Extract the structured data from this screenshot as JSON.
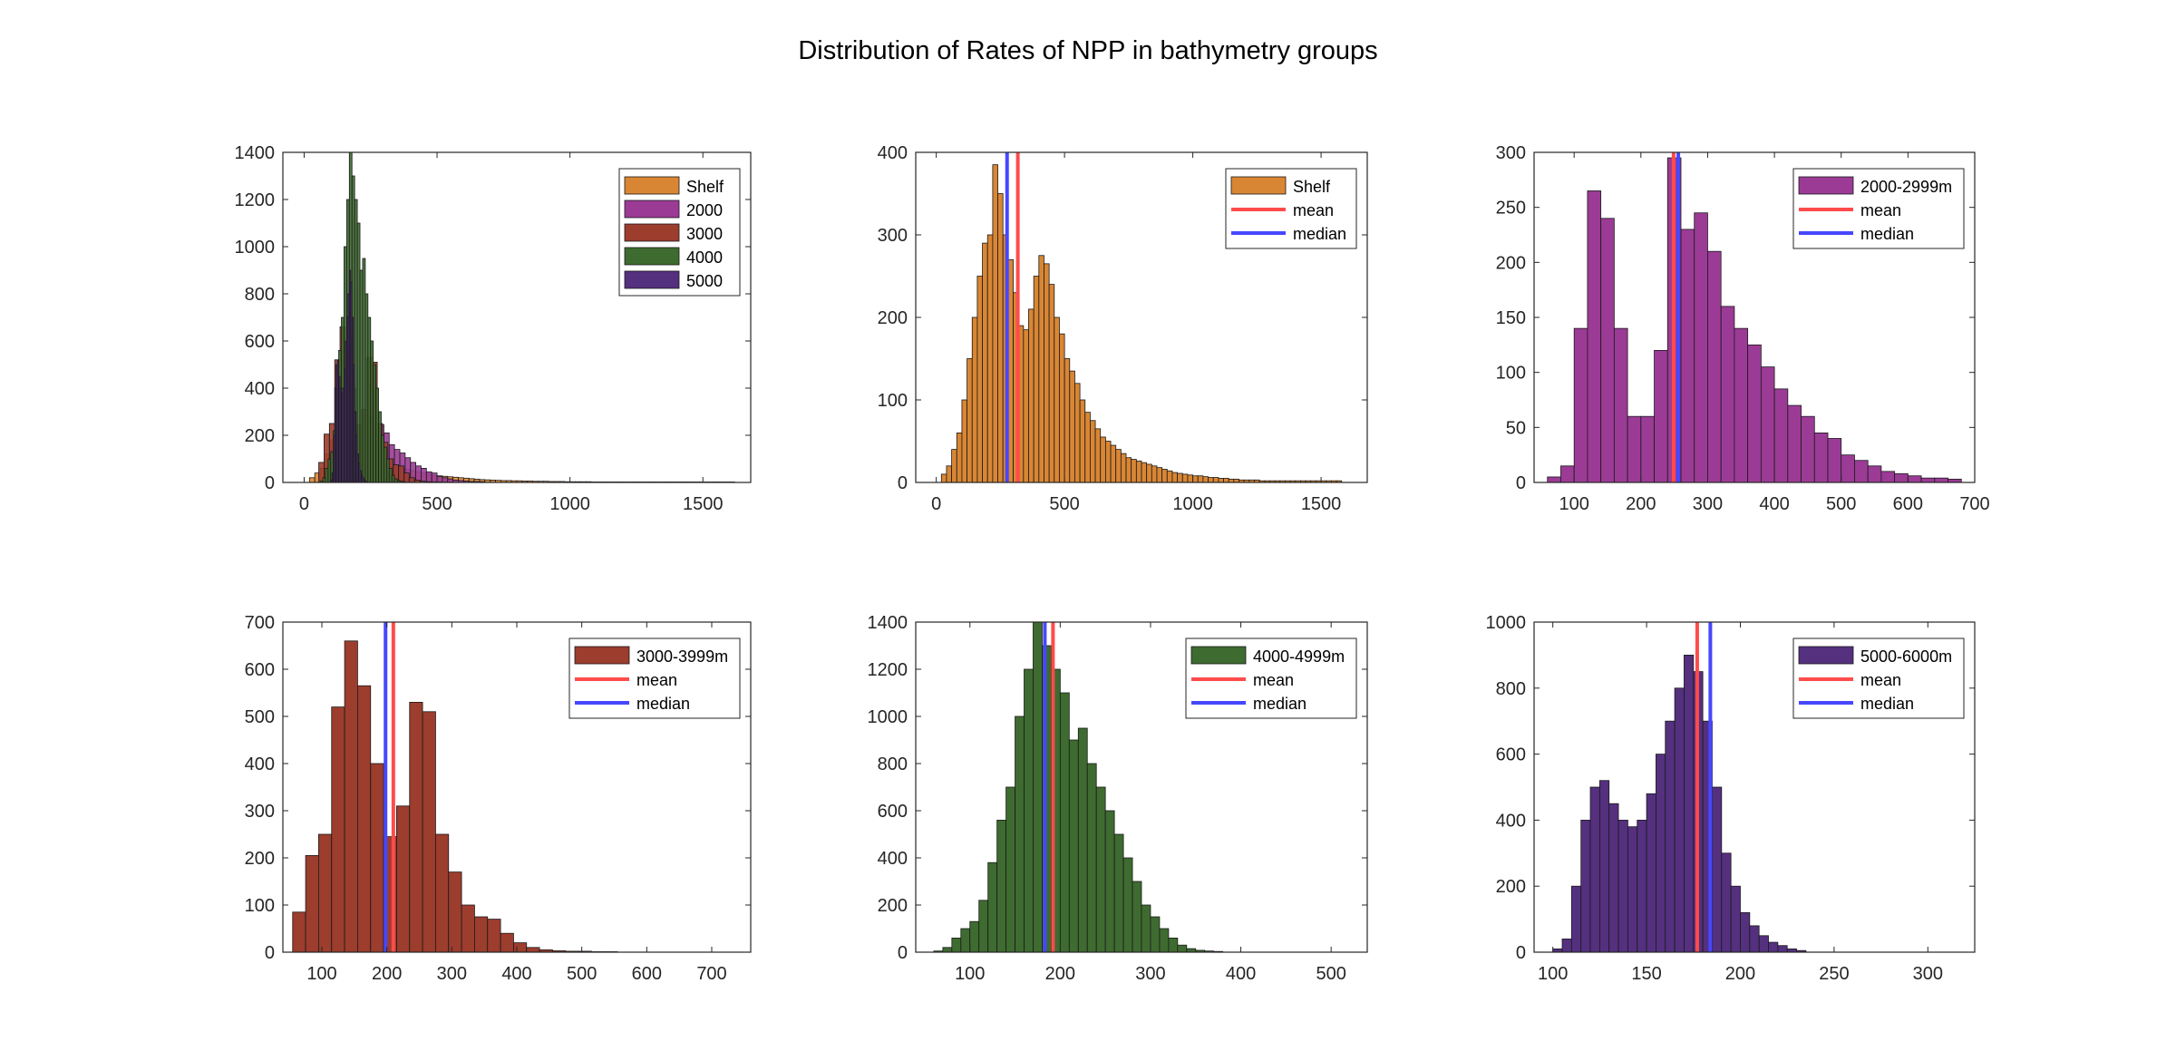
{
  "figure": {
    "title": "Distribution of Rates of NPP in bathymetry groups"
  },
  "chart_data": [
    {
      "type": "bar",
      "panel": "overlay",
      "xlim": [
        -80,
        1680
      ],
      "ylim": [
        0,
        1400
      ],
      "xticks": [
        0,
        500,
        1000,
        1500
      ],
      "yticks": [
        0,
        200,
        400,
        600,
        800,
        1000,
        1200,
        1400
      ],
      "legend_position": "top-right",
      "legend": [
        {
          "label": "Shelf",
          "swatch": "#d98634"
        },
        {
          "label": "2000",
          "swatch": "#9b3b96"
        },
        {
          "label": "3000",
          "swatch": "#9c3d2e"
        },
        {
          "label": "4000",
          "swatch": "#3e6b30"
        },
        {
          "label": "5000",
          "swatch": "#54307f"
        }
      ],
      "series": [
        {
          "name": "Shelf",
          "color": "#d98634",
          "bin_start": 20,
          "bin_width": 20,
          "values": [
            20,
            40,
            60,
            120,
            180,
            240,
            210,
            190,
            170,
            150,
            160,
            140,
            120,
            100,
            90,
            80,
            70,
            60,
            55,
            50,
            45,
            40,
            35,
            30,
            28,
            26,
            24,
            22,
            20,
            18,
            16,
            14,
            12,
            11,
            10,
            9,
            8,
            8,
            7,
            7,
            6,
            6,
            5,
            5,
            5,
            4,
            4,
            4,
            3,
            3,
            3,
            3,
            3,
            2,
            2,
            2,
            2,
            2,
            2,
            2,
            2,
            2,
            2,
            2,
            2,
            2,
            2,
            2,
            2,
            2,
            2,
            2,
            2,
            2,
            2,
            2,
            2,
            2,
            2,
            2
          ]
        },
        {
          "name": "2000",
          "color": "#9b3b96",
          "bin_start": 60,
          "bin_width": 20,
          "values": [
            5,
            15,
            140,
            265,
            240,
            140,
            60,
            60,
            120,
            295,
            230,
            245,
            210,
            160,
            140,
            125,
            105,
            85,
            70,
            60,
            45,
            40,
            25,
            20,
            15,
            10,
            8,
            6,
            4,
            4,
            3
          ]
        },
        {
          "name": "3000",
          "color": "#9c3d2e",
          "bin_start": 55,
          "bin_width": 20,
          "values": [
            85,
            205,
            250,
            520,
            660,
            565,
            400,
            245,
            310,
            530,
            510,
            250,
            170,
            100,
            75,
            70,
            40,
            20,
            10,
            5,
            3,
            2,
            2,
            1,
            1
          ]
        },
        {
          "name": "4000",
          "color": "#3e6b30",
          "bin_start": 60,
          "bin_width": 10,
          "values": [
            5,
            20,
            60,
            100,
            130,
            220,
            380,
            560,
            700,
            1000,
            1200,
            1400,
            1300,
            1200,
            1100,
            900,
            950,
            800,
            700,
            600,
            500,
            400,
            300,
            200,
            150,
            100,
            60,
            30,
            15,
            8,
            5,
            3
          ]
        },
        {
          "name": "5000",
          "color": "#54307f",
          "bin_start": 100,
          "bin_width": 5,
          "values": [
            10,
            40,
            200,
            400,
            500,
            520,
            450,
            400,
            380,
            400,
            480,
            600,
            700,
            800,
            900,
            850,
            700,
            500,
            300,
            200,
            120,
            80,
            50,
            30,
            20,
            10,
            5
          ]
        }
      ]
    },
    {
      "type": "bar",
      "panel": "single",
      "xlim": [
        -80,
        1680
      ],
      "ylim": [
        0,
        400
      ],
      "xticks": [
        0,
        500,
        1000,
        1500
      ],
      "yticks": [
        0,
        100,
        200,
        300,
        400
      ],
      "legend_position": "top-right",
      "legend": [
        {
          "label": "Shelf",
          "swatch": "#d98634"
        },
        {
          "label": "mean",
          "line": "#ff4b4b"
        },
        {
          "label": "median",
          "line": "#4747ff"
        }
      ],
      "color": "#d98634",
      "bin_start": 20,
      "bin_width": 20,
      "values": [
        10,
        20,
        40,
        60,
        100,
        150,
        200,
        250,
        290,
        300,
        385,
        350,
        300,
        270,
        230,
        190,
        185,
        210,
        250,
        275,
        265,
        240,
        200,
        180,
        150,
        135,
        120,
        100,
        85,
        75,
        65,
        55,
        50,
        45,
        40,
        35,
        30,
        28,
        26,
        24,
        22,
        20,
        18,
        16,
        14,
        12,
        11,
        10,
        9,
        8,
        8,
        7,
        6,
        6,
        5,
        5,
        4,
        4,
        3,
        3,
        3,
        3,
        2,
        2,
        2,
        2,
        2,
        2,
        2,
        2,
        2,
        2,
        2,
        2,
        2,
        2,
        2,
        2
      ],
      "mean": 318,
      "median": 276
    },
    {
      "type": "bar",
      "panel": "single",
      "xlim": [
        40,
        700
      ],
      "ylim": [
        0,
        300
      ],
      "xticks": [
        100,
        200,
        300,
        400,
        500,
        600,
        700
      ],
      "yticks": [
        0,
        50,
        100,
        150,
        200,
        250,
        300
      ],
      "legend_position": "top-right",
      "legend": [
        {
          "label": "2000-2999m",
          "swatch": "#9b3b96"
        },
        {
          "label": "mean",
          "line": "#ff4b4b"
        },
        {
          "label": "median",
          "line": "#4747ff"
        }
      ],
      "color": "#9b3b96",
      "bin_start": 60,
      "bin_width": 20,
      "values": [
        5,
        15,
        140,
        265,
        240,
        140,
        60,
        60,
        120,
        295,
        230,
        245,
        210,
        160,
        140,
        125,
        105,
        85,
        70,
        60,
        45,
        40,
        25,
        20,
        15,
        10,
        8,
        6,
        4,
        4,
        3
      ],
      "mean": 249,
      "median": 256
    },
    {
      "type": "bar",
      "panel": "single",
      "xlim": [
        40,
        760
      ],
      "ylim": [
        0,
        700
      ],
      "xticks": [
        100,
        200,
        300,
        400,
        500,
        600,
        700
      ],
      "yticks": [
        0,
        100,
        200,
        300,
        400,
        500,
        600,
        700
      ],
      "legend_position": "top-right",
      "legend": [
        {
          "label": "3000-3999m",
          "swatch": "#9c3d2e"
        },
        {
          "label": "mean",
          "line": "#ff4b4b"
        },
        {
          "label": "median",
          "line": "#4747ff"
        }
      ],
      "color": "#9c3d2e",
      "bin_start": 55,
      "bin_width": 20,
      "values": [
        85,
        205,
        250,
        520,
        660,
        565,
        400,
        245,
        310,
        530,
        510,
        250,
        170,
        100,
        75,
        70,
        40,
        20,
        10,
        5,
        3,
        2,
        2,
        1,
        1
      ],
      "mean": 210,
      "median": 198
    },
    {
      "type": "bar",
      "panel": "single",
      "xlim": [
        40,
        540
      ],
      "ylim": [
        0,
        1400
      ],
      "xticks": [
        100,
        200,
        300,
        400,
        500
      ],
      "yticks": [
        0,
        200,
        400,
        600,
        800,
        1000,
        1200,
        1400
      ],
      "legend_position": "top-right",
      "legend": [
        {
          "label": "4000-4999m",
          "swatch": "#3e6b30"
        },
        {
          "label": "mean",
          "line": "#ff4b4b"
        },
        {
          "label": "median",
          "line": "#4747ff"
        }
      ],
      "color": "#3e6b30",
      "bin_start": 60,
      "bin_width": 10,
      "values": [
        5,
        20,
        60,
        100,
        130,
        220,
        380,
        560,
        700,
        1000,
        1200,
        1400,
        1300,
        1200,
        1100,
        900,
        950,
        800,
        700,
        600,
        500,
        400,
        300,
        200,
        150,
        100,
        60,
        30,
        15,
        8,
        5,
        3
      ],
      "mean": 192,
      "median": 183
    },
    {
      "type": "bar",
      "panel": "single",
      "xlim": [
        90,
        325
      ],
      "ylim": [
        0,
        1000
      ],
      "xticks": [
        100,
        150,
        200,
        250,
        300
      ],
      "yticks": [
        0,
        200,
        400,
        600,
        800,
        1000
      ],
      "legend_position": "top-right",
      "legend": [
        {
          "label": "5000-6000m",
          "swatch": "#54307f"
        },
        {
          "label": "mean",
          "line": "#ff4b4b"
        },
        {
          "label": "median",
          "line": "#4747ff"
        }
      ],
      "color": "#54307f",
      "bin_start": 100,
      "bin_width": 5,
      "values": [
        10,
        40,
        200,
        400,
        500,
        520,
        450,
        400,
        380,
        400,
        480,
        600,
        700,
        800,
        900,
        850,
        700,
        500,
        300,
        200,
        120,
        80,
        50,
        30,
        20,
        10,
        5
      ],
      "mean": 177,
      "median": 184
    }
  ]
}
